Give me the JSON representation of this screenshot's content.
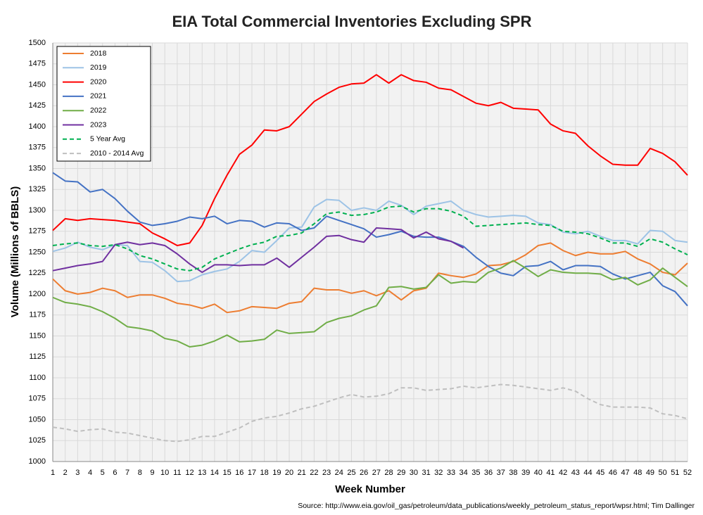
{
  "chart_data": {
    "type": "line",
    "title": "EIA Total Commercial Inventories Excluding SPR",
    "x_label": "Week Number",
    "y_label": "Volume (Millions of BBLS)",
    "source": "Source: http://www.eia.gov/oil_gas/petroleum/data_publications/weekly_petroleum_status_report/wpsr.html; Tim Dallinger",
    "x": [
      1,
      2,
      3,
      4,
      5,
      6,
      7,
      8,
      9,
      10,
      11,
      12,
      13,
      14,
      15,
      16,
      17,
      18,
      19,
      20,
      21,
      22,
      23,
      24,
      25,
      26,
      27,
      28,
      29,
      30,
      31,
      32,
      33,
      34,
      35,
      36,
      37,
      38,
      39,
      40,
      41,
      42,
      43,
      44,
      45,
      46,
      47,
      48,
      49,
      50,
      51,
      52
    ],
    "xlim": [
      1,
      52
    ],
    "xticks": [
      1,
      2,
      3,
      4,
      5,
      6,
      7,
      8,
      9,
      10,
      11,
      12,
      13,
      14,
      15,
      16,
      17,
      18,
      19,
      20,
      21,
      22,
      23,
      24,
      25,
      26,
      27,
      28,
      29,
      30,
      31,
      32,
      33,
      34,
      35,
      36,
      37,
      38,
      39,
      40,
      41,
      42,
      43,
      44,
      45,
      46,
      47,
      48,
      49,
      50,
      51,
      52
    ],
    "ylim": [
      1000,
      1500
    ],
    "yticks": [
      1000,
      1025,
      1050,
      1075,
      1100,
      1125,
      1150,
      1175,
      1200,
      1225,
      1250,
      1275,
      1300,
      1325,
      1350,
      1375,
      1400,
      1425,
      1450,
      1475,
      1500
    ],
    "grid": true,
    "legend": "upper left",
    "series": [
      {
        "name": "2018",
        "color": "#ed7d31",
        "dash": false,
        "values": [
          1218,
          1204,
          1200,
          1202,
          1207,
          1204,
          1196,
          1199,
          1199,
          1195,
          1189,
          1187,
          1183,
          1188,
          1178,
          1180,
          1185,
          1184,
          1183,
          1189,
          1191,
          1207,
          1205,
          1205,
          1201,
          1204,
          1198,
          1204,
          1193,
          1204,
          1207,
          1225,
          1222,
          1220,
          1224,
          1234,
          1235,
          1239,
          1247,
          1258,
          1261,
          1252,
          1246,
          1250,
          1248,
          1248,
          1251,
          1242,
          1236,
          1226,
          1223,
          1237
        ]
      },
      {
        "name": "2019",
        "color": "#9dc3e6",
        "dash": false,
        "values": [
          1251,
          1255,
          1262,
          1256,
          1253,
          1259,
          1258,
          1239,
          1238,
          1228,
          1215,
          1216,
          1223,
          1227,
          1230,
          1239,
          1252,
          1250,
          1264,
          1279,
          1280,
          1304,
          1313,
          1312,
          1300,
          1303,
          1300,
          1311,
          1306,
          1295,
          1305,
          1308,
          1311,
          1300,
          1295,
          1292,
          1293,
          1294,
          1293,
          1285,
          1283,
          1274,
          1272,
          1275,
          1269,
          1264,
          1264,
          1260,
          1276,
          1275,
          1264,
          1262
        ]
      },
      {
        "name": "2020",
        "color": "#ff0000",
        "dash": false,
        "values": [
          1276,
          1290,
          1288,
          1290,
          1289,
          1288,
          1286,
          1284,
          1273,
          1266,
          1258,
          1261,
          1282,
          1314,
          1342,
          1367,
          1378,
          1396,
          1395,
          1400,
          1415,
          1430,
          1439,
          1447,
          1451,
          1452,
          1462,
          1452,
          1462,
          1455,
          1453,
          1446,
          1444,
          1436,
          1428,
          1425,
          1429,
          1422,
          1421,
          1420,
          1403,
          1395,
          1392,
          1377,
          1365,
          1355,
          1354,
          1354,
          1374,
          1368,
          1358,
          1342
        ]
      },
      {
        "name": "2021",
        "color": "#4472c4",
        "dash": false,
        "values": [
          1345,
          1335,
          1334,
          1322,
          1325,
          1314,
          1299,
          1286,
          1282,
          1284,
          1287,
          1292,
          1290,
          1293,
          1284,
          1288,
          1287,
          1280,
          1285,
          1284,
          1276,
          1279,
          1293,
          1288,
          1283,
          1278,
          1268,
          1271,
          1275,
          1269,
          1268,
          1268,
          1263,
          1257,
          1244,
          1233,
          1225,
          1222,
          1233,
          1234,
          1239,
          1229,
          1234,
          1234,
          1233,
          1224,
          1218,
          1222,
          1226,
          1210,
          1203,
          1186
        ]
      },
      {
        "name": "2022",
        "color": "#70ad47",
        "dash": false,
        "values": [
          1196,
          1190,
          1188,
          1185,
          1179,
          1171,
          1161,
          1159,
          1156,
          1147,
          1144,
          1137,
          1139,
          1144,
          1151,
          1143,
          1144,
          1146,
          1157,
          1153,
          1154,
          1155,
          1166,
          1171,
          1174,
          1181,
          1186,
          1208,
          1209,
          1206,
          1208,
          1223,
          1213,
          1215,
          1214,
          1226,
          1231,
          1240,
          1231,
          1221,
          1229,
          1226,
          1225,
          1225,
          1224,
          1217,
          1220,
          1211,
          1217,
          1231,
          1220,
          1209
        ]
      },
      {
        "name": "2023",
        "color": "#7030a0",
        "dash": false,
        "values": [
          1228,
          1231,
          1234,
          1236,
          1239,
          1259,
          1262,
          1259,
          1261,
          1258,
          1248,
          1236,
          1226,
          1235,
          1235,
          1234,
          1235,
          1235,
          1243,
          1232,
          1244,
          1256,
          1269,
          1270,
          1265,
          1262,
          1279,
          1278,
          1277,
          1267,
          1274,
          1266,
          1263,
          1255,
          null,
          null,
          null,
          null,
          null,
          null,
          null,
          null,
          null,
          null,
          null,
          null,
          null,
          null,
          null,
          null,
          null,
          null
        ]
      },
      {
        "name": "5 Year Avg",
        "color": "#00b050",
        "dash": true,
        "values": [
          1258,
          1260,
          1261,
          1258,
          1257,
          1259,
          1254,
          1246,
          1242,
          1236,
          1230,
          1228,
          1232,
          1242,
          1248,
          1254,
          1259,
          1262,
          1269,
          1270,
          1273,
          1284,
          1296,
          1298,
          1294,
          1295,
          1298,
          1304,
          1305,
          1298,
          1302,
          1302,
          1299,
          1293,
          1281,
          1282,
          1283,
          1284,
          1285,
          1283,
          1282,
          1275,
          1274,
          1272,
          1267,
          1261,
          1261,
          1257,
          1266,
          1262,
          1254,
          1247
        ]
      },
      {
        "name": "2010 - 2014 Avg",
        "color": "#bfbfbf",
        "dash": true,
        "values": [
          1041,
          1039,
          1036,
          1038,
          1039,
          1035,
          1034,
          1031,
          1028,
          1025,
          1024,
          1026,
          1030,
          1030,
          1035,
          1040,
          1048,
          1052,
          1054,
          1058,
          1063,
          1066,
          1071,
          1076,
          1080,
          1077,
          1078,
          1081,
          1088,
          1088,
          1085,
          1086,
          1087,
          1090,
          1088,
          1090,
          1092,
          1091,
          1089,
          1087,
          1085,
          1088,
          1084,
          1075,
          1068,
          1065,
          1065,
          1065,
          1064,
          1057,
          1055,
          1051
        ]
      }
    ]
  }
}
